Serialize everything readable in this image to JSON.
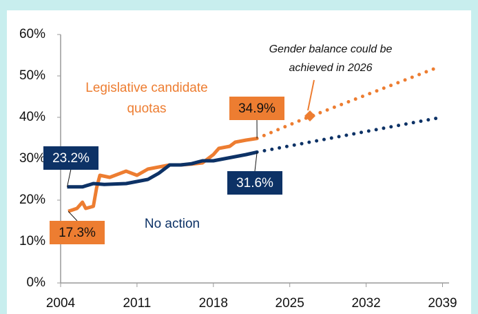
{
  "chart_data": {
    "type": "line",
    "xlim": [
      2004,
      2039.6
    ],
    "xticks": [
      2004,
      2011,
      2018,
      2025,
      2032,
      2039
    ],
    "ylim": [
      0,
      60
    ],
    "yticks": [
      {
        "value": 0,
        "label": "0%"
      },
      {
        "value": 10,
        "label": "10%"
      },
      {
        "value": 20,
        "label": "20%"
      },
      {
        "value": 30,
        "label": "30%"
      },
      {
        "value": 40,
        "label": "40%"
      },
      {
        "value": 50,
        "label": "50%"
      },
      {
        "value": 60,
        "label": "60%"
      }
    ],
    "series": [
      {
        "name": "Legislative candidate quotas",
        "color": "#ed7d31",
        "x": [
          2004.7,
          2005.5,
          2006,
          2006.3,
          2007,
          2007.3,
          2007.6,
          2008.5,
          2010,
          2011,
          2012,
          2013,
          2014,
          2015,
          2016,
          2017,
          2018,
          2018.5,
          2019.5,
          2020,
          2021,
          2022
        ],
        "values": [
          17.3,
          18,
          19.5,
          18,
          18.5,
          23,
          26,
          25.5,
          27,
          26,
          27.5,
          28,
          28.5,
          28.5,
          28.7,
          29,
          31,
          32.5,
          33,
          34,
          34.5,
          34.9
        ],
        "value_labels": [
          "17.3%",
          null,
          null,
          null,
          null,
          null,
          null,
          null,
          null,
          null,
          null,
          null,
          null,
          null,
          null,
          null,
          null,
          null,
          null,
          null,
          null,
          "34.9%"
        ],
        "projection_x": [
          2022,
          2026,
          2038.5
        ],
        "projection_values": [
          34.9,
          39.3,
          52
        ]
      },
      {
        "name": "No action",
        "color": "#0d3266",
        "x": [
          2004.6,
          2006,
          2007,
          2008,
          2010,
          2011,
          2012,
          2013,
          2014,
          2015,
          2016,
          2017,
          2018,
          2019,
          2020,
          2021,
          2022
        ],
        "values": [
          23.2,
          23.2,
          24,
          23.8,
          24,
          24.5,
          25,
          26.5,
          28.5,
          28.5,
          28.8,
          29.5,
          29.5,
          30,
          30.5,
          31,
          31.6
        ],
        "value_labels": [
          "23.2%",
          null,
          null,
          null,
          null,
          null,
          null,
          null,
          null,
          null,
          null,
          null,
          null,
          null,
          null,
          null,
          "31.6%"
        ],
        "projection_x": [
          2022,
          2038.5
        ],
        "projection_values": [
          31.6,
          39.8
        ]
      }
    ],
    "annotation": "Gender balance could be achieved in 2026"
  }
}
